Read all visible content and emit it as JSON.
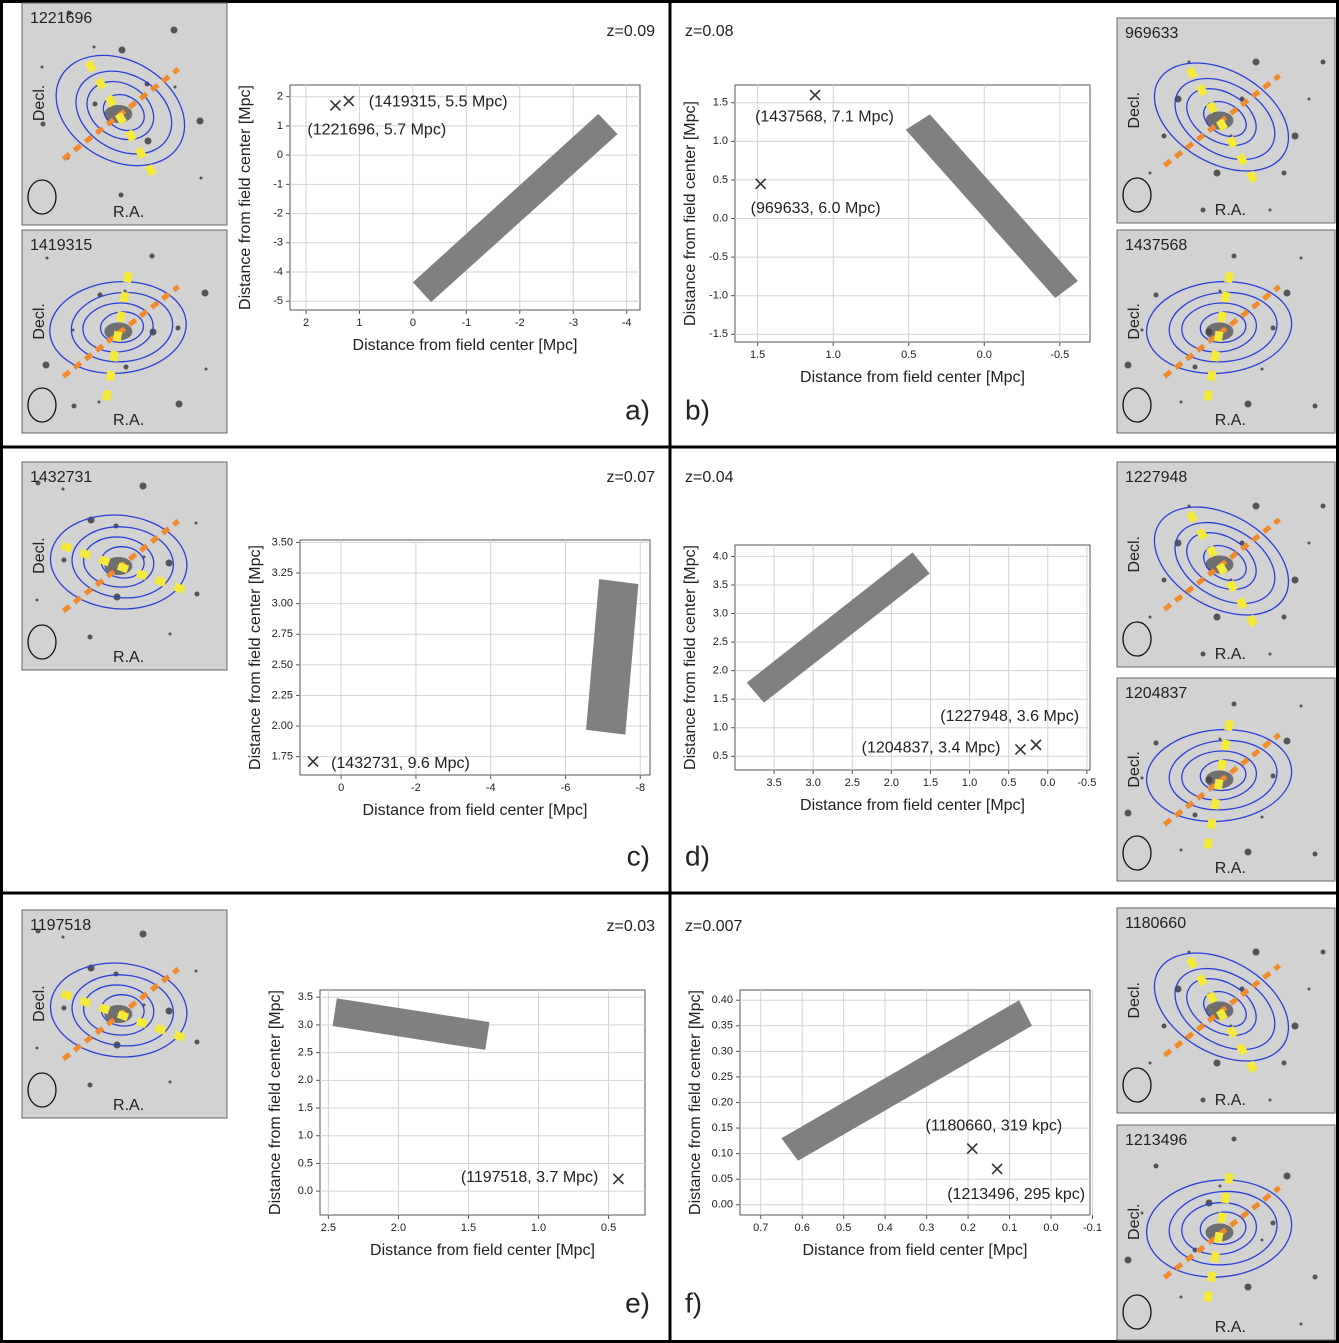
{
  "chart_data": [
    {
      "type": "scatter",
      "panel_label": "a)",
      "redshift_label": "z=0.09",
      "xlabel": "Distance from field center [Mpc]",
      "ylabel": "Distance from field center [Mpc]",
      "xlim": [
        2.3,
        -4.25
      ],
      "ylim": [
        -5.3,
        2.4
      ],
      "xticks": [
        2,
        1,
        0,
        -1,
        -2,
        -3,
        -4
      ],
      "yticks": [
        2,
        1,
        0,
        -1,
        -2,
        -3,
        -4,
        -5
      ],
      "grid": true,
      "marker": "x",
      "color": "#333333",
      "x": [
        1.45,
        1.2
      ],
      "y": [
        1.7,
        1.85
      ],
      "point_labels": [
        "(1221696, 5.7 Mpc)",
        "(1419315, 5.5 Mpc)"
      ],
      "filament": {
        "color": "#808080",
        "x": [
          0,
          -0.34,
          -3.83,
          -3.47
        ],
        "y": [
          -4.35,
          -5.03,
          0.72,
          1.41
        ]
      },
      "thumbnails": [
        {
          "id": "1221696",
          "ylabel": "Decl.",
          "xlabel": "R.A."
        },
        {
          "id": "1419315",
          "ylabel": "Decl.",
          "xlabel": "R.A."
        }
      ]
    },
    {
      "type": "scatter",
      "panel_label": "b)",
      "redshift_label": "z=0.08",
      "xlabel": "Distance from field center [Mpc]",
      "ylabel": "Distance from field center [Mpc]",
      "xlim": [
        1.65,
        -0.7
      ],
      "ylim": [
        -1.6,
        1.73
      ],
      "xticks": [
        1.5,
        {
          "value": 1,
          "label": "1.0"
        },
        0.5,
        {
          "value": 0,
          "label": "0.0"
        },
        -0.5
      ],
      "yticks": [
        1.5,
        {
          "value": 1,
          "label": "1.0"
        },
        0.5,
        {
          "value": 0,
          "label": "0.0"
        },
        -0.5,
        {
          "value": -1,
          "label": "-1.0"
        },
        -1.5
      ],
      "grid": true,
      "marker": "x",
      "color": "#333333",
      "x": [
        1.48,
        1.12
      ],
      "y": [
        0.45,
        1.6
      ],
      "point_labels": [
        "(969633, 6.0 Mpc)",
        "(1437568, 7.1 Mpc)"
      ],
      "filament": {
        "color": "#808080",
        "x": [
          0.52,
          0.36,
          -0.62,
          -0.47
        ],
        "y": [
          1.15,
          1.35,
          -0.81,
          -1.03
        ]
      },
      "thumbnails": [
        {
          "id": "969633",
          "ylabel": "Decl.",
          "xlabel": "R.A."
        },
        {
          "id": "1437568",
          "ylabel": "Decl.",
          "xlabel": "R.A."
        }
      ]
    },
    {
      "type": "scatter",
      "panel_label": "c)",
      "redshift_label": "z=0.07",
      "xlabel": "Distance from field center [Mpc]",
      "ylabel": "Distance from field center [Mpc]",
      "xlim": [
        1.1,
        -8.26
      ],
      "ylim": [
        1.6,
        3.52
      ],
      "xticks": [
        0,
        -2,
        -4,
        -6,
        -8
      ],
      "yticks": [
        {
          "value": 3.5,
          "label": "3.50"
        },
        3.25,
        {
          "value": 3,
          "label": "3.00"
        },
        2.75,
        {
          "value": 2.5,
          "label": "2.50"
        },
        2.25,
        {
          "value": 2,
          "label": "2.00"
        },
        1.75
      ],
      "grid": true,
      "marker": "x",
      "color": "#333333",
      "x": [
        0.75
      ],
      "y": [
        1.71
      ],
      "point_labels": [
        "(1432731, 9.6 Mpc)"
      ],
      "filament": {
        "color": "#808080",
        "x": [
          -6.9,
          -7.95,
          -7.6,
          -6.55
        ],
        "y": [
          3.2,
          3.16,
          1.93,
          1.97
        ]
      },
      "thumbnails": [
        {
          "id": "1432731",
          "ylabel": "Decl.",
          "xlabel": "R.A."
        }
      ]
    },
    {
      "type": "scatter",
      "panel_label": "d)",
      "redshift_label": "z=0.04",
      "xlabel": "Distance from field center [Mpc]",
      "ylabel": "Distance from field center [Mpc]",
      "xlim": [
        4.0,
        -0.54
      ],
      "ylim": [
        0.26,
        4.2
      ],
      "xticks": [
        3.5,
        {
          "value": 3,
          "label": "3.0"
        },
        2.5,
        {
          "value": 2,
          "label": "2.0"
        },
        1.5,
        {
          "value": 1,
          "label": "1.0"
        },
        0.5,
        {
          "value": 0,
          "label": "0.0"
        },
        -0.5
      ],
      "yticks": [
        {
          "value": 4,
          "label": "4.0"
        },
        3.5,
        {
          "value": 3,
          "label": "3.0"
        },
        2.5,
        {
          "value": 2,
          "label": "2.0"
        },
        1.5,
        {
          "value": 1,
          "label": "1.0"
        },
        0.5
      ],
      "grid": true,
      "marker": "x",
      "color": "#333333",
      "x": [
        0.35,
        0.15
      ],
      "y": [
        0.62,
        0.7
      ],
      "point_labels": [
        "(1204837, 3.4 Mpc)",
        "(1227948, 3.6 Mpc)"
      ],
      "filament": {
        "color": "#808080",
        "x": [
          3.85,
          3.63,
          1.51,
          1.73
        ],
        "y": [
          1.79,
          1.44,
          3.7,
          4.07
        ]
      },
      "thumbnails": [
        {
          "id": "1227948",
          "ylabel": "Decl.",
          "xlabel": "R.A."
        },
        {
          "id": "1204837",
          "ylabel": "Decl.",
          "xlabel": "R.A."
        }
      ]
    },
    {
      "type": "scatter",
      "panel_label": "e)",
      "redshift_label": "z=0.03",
      "xlabel": "Distance from field center [Mpc]",
      "ylabel": "Distance from field center [Mpc]",
      "xlim": [
        2.56,
        0.24
      ],
      "ylim": [
        -0.43,
        3.63
      ],
      "xticks": [
        2.5,
        {
          "value": 2,
          "label": "2.0"
        },
        1.5,
        {
          "value": 1,
          "label": "1.0"
        },
        0.5
      ],
      "yticks": [
        3.5,
        {
          "value": 3,
          "label": "3.0"
        },
        2.5,
        {
          "value": 2,
          "label": "2.0"
        },
        1.5,
        {
          "value": 1,
          "label": "1.0"
        },
        0.5,
        {
          "value": 0,
          "label": "0.0"
        }
      ],
      "grid": true,
      "marker": "x",
      "color": "#333333",
      "x": [
        0.43
      ],
      "y": [
        0.22
      ],
      "point_labels": [
        "(1197518, 3.7 Mpc)"
      ],
      "filament": {
        "color": "#808080",
        "x": [
          2.44,
          2.47,
          1.38,
          1.35
        ],
        "y": [
          3.48,
          2.98,
          2.55,
          3.05
        ]
      },
      "thumbnails": [
        {
          "id": "1197518",
          "ylabel": "Decl.",
          "xlabel": "R.A."
        }
      ]
    },
    {
      "type": "scatter",
      "panel_label": "f)",
      "redshift_label": "z=0.007",
      "xlabel": "Distance from field center [Mpc]",
      "ylabel": "Distance from field center [Mpc]",
      "xlim": [
        0.75,
        -0.094
      ],
      "ylim": [
        -0.02,
        0.42
      ],
      "xticks": [
        0.7,
        0.6,
        0.5,
        0.4,
        0.3,
        0.2,
        0.1,
        {
          "value": 0,
          "label": "0.0"
        },
        -0.1
      ],
      "yticks": [
        {
          "value": 0.4,
          "label": "0.40"
        },
        0.35,
        {
          "value": 0.3,
          "label": "0.30"
        },
        0.25,
        {
          "value": 0.2,
          "label": "0.20"
        },
        0.15,
        {
          "value": 0.1,
          "label": "0.10"
        },
        0.05,
        {
          "value": 0,
          "label": "0.00"
        }
      ],
      "grid": true,
      "marker": "x",
      "color": "#333333",
      "x": [
        0.19,
        0.13
      ],
      "y": [
        0.11,
        0.07
      ],
      "point_labels": [
        "(1180660, 319 kpc)",
        "(1213496, 295 kpc)"
      ],
      "filament": {
        "color": "#808080",
        "x": [
          0.65,
          0.61,
          0.046,
          0.077
        ],
        "y": [
          0.13,
          0.086,
          0.35,
          0.4
        ]
      },
      "thumbnails": [
        {
          "id": "1180660",
          "ylabel": "Decl.",
          "xlabel": "R.A."
        },
        {
          "id": "1213496",
          "ylabel": "Decl.",
          "xlabel": "R.A."
        }
      ]
    }
  ]
}
